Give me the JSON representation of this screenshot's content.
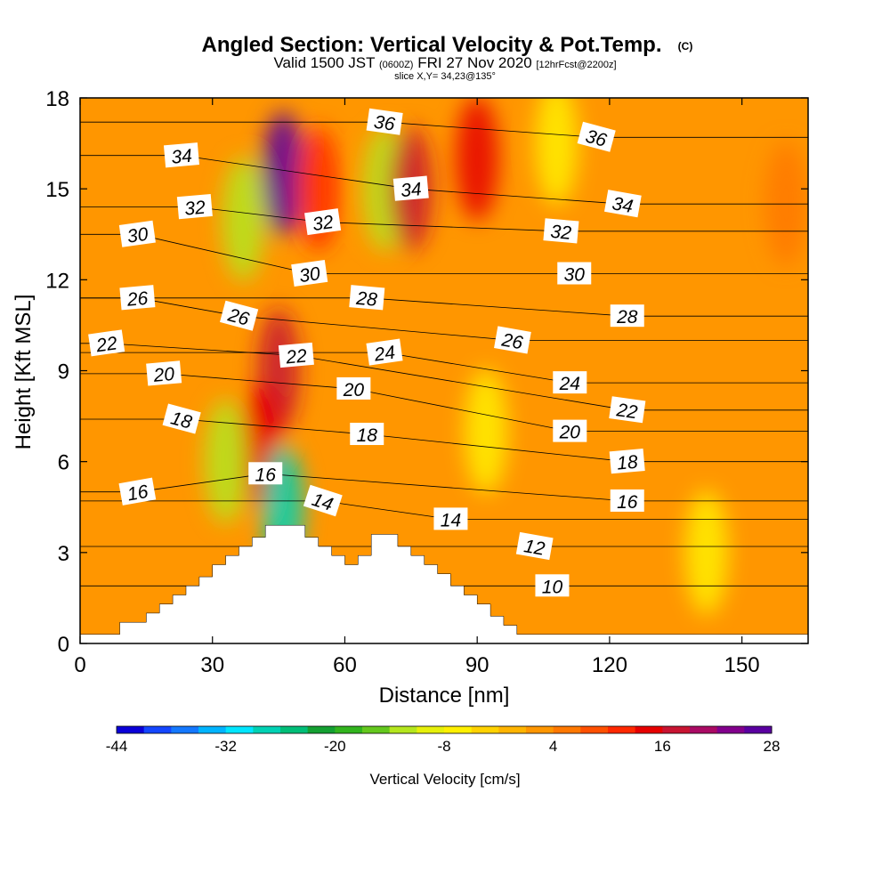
{
  "chart_data": {
    "type": "heatmap",
    "title": "Angled Section: Vertical Velocity & Pot.Temp.",
    "title_mark": "(C)",
    "subtitle_parts": [
      "Valid 1500 JST",
      "(0600Z)",
      "FRI 27 Nov 2020",
      "[12hrFcst@2200z]"
    ],
    "slice_text": "slice X,Y= 34,23@135°",
    "xlabel": "Distance [nm]",
    "ylabel": "Height [Kft MSL]",
    "xlim": [
      0,
      165
    ],
    "ylim": [
      0,
      18
    ],
    "xticks": [
      0,
      30,
      60,
      90,
      120,
      150
    ],
    "yticks": [
      0,
      3,
      6,
      9,
      12,
      15,
      18
    ],
    "colorbar": {
      "label": "Vertical Velocity [cm/s]",
      "tick_values": [
        -44,
        -32,
        -20,
        -8,
        4,
        16,
        28
      ],
      "min": -44,
      "step": 3,
      "colors": [
        "#0a00d8",
        "#1446ff",
        "#1478ff",
        "#00b4ff",
        "#00e6ff",
        "#00d2b4",
        "#00be78",
        "#14a032",
        "#32b41e",
        "#64c81e",
        "#b4e61e",
        "#e6f00a",
        "#fff000",
        "#ffd200",
        "#ffb400",
        "#ff9600",
        "#ff7800",
        "#ff5000",
        "#ff2800",
        "#e60000",
        "#c81432",
        "#aa0a64",
        "#82008c",
        "#5a00a0"
      ]
    },
    "vertical_velocity_features": [
      {
        "x": 46,
        "y": 15.5,
        "value": 30
      },
      {
        "x": 45,
        "y": 9,
        "value": 18
      },
      {
        "x": 41,
        "y": 6.5,
        "value": 14
      },
      {
        "x": 37,
        "y": 14,
        "value": -14
      },
      {
        "x": 33,
        "y": 6,
        "value": -12
      },
      {
        "x": 46,
        "y": 4.5,
        "value": -28
      },
      {
        "x": 54,
        "y": 15,
        "value": 12
      },
      {
        "x": 69,
        "y": 15,
        "value": -14
      },
      {
        "x": 75,
        "y": 15,
        "value": 16
      },
      {
        "x": 90,
        "y": 16,
        "value": 14
      },
      {
        "x": 92,
        "y": 7,
        "value": -8
      },
      {
        "x": 108,
        "y": 16.5,
        "value": -8
      },
      {
        "x": 142,
        "y": 3,
        "value": -6
      },
      {
        "x": 160,
        "y": 14.5,
        "value": 6
      }
    ],
    "theta_labels": [
      {
        "x": 23,
        "y": 16.1,
        "value": "34",
        "rot": -5
      },
      {
        "x": 26,
        "y": 14.4,
        "value": "32",
        "rot": -5
      },
      {
        "x": 13,
        "y": 13.5,
        "value": "30",
        "rot": -8
      },
      {
        "x": 13,
        "y": 11.4,
        "value": "26",
        "rot": -5
      },
      {
        "x": 6,
        "y": 9.9,
        "value": "22",
        "rot": -8
      },
      {
        "x": 19,
        "y": 8.9,
        "value": "20",
        "rot": -5
      },
      {
        "x": 23,
        "y": 7.4,
        "value": "18",
        "rot": 15
      },
      {
        "x": 13,
        "y": 5,
        "value": "16",
        "rot": -10
      },
      {
        "x": 36,
        "y": 10.8,
        "value": "26",
        "rot": 15
      },
      {
        "x": 49,
        "y": 9.5,
        "value": "22",
        "rot": -5
      },
      {
        "x": 52,
        "y": 12.2,
        "value": "30",
        "rot": -8
      },
      {
        "x": 55,
        "y": 13.9,
        "value": "32",
        "rot": -8
      },
      {
        "x": 42,
        "y": 5.6,
        "value": "16",
        "rot": 0
      },
      {
        "x": 55,
        "y": 4.7,
        "value": "14",
        "rot": 18
      },
      {
        "x": 69,
        "y": 17.2,
        "value": "36",
        "rot": 8
      },
      {
        "x": 75,
        "y": 15,
        "value": "34",
        "rot": -5
      },
      {
        "x": 65,
        "y": 11.4,
        "value": "28",
        "rot": 5
      },
      {
        "x": 69,
        "y": 9.6,
        "value": "24",
        "rot": -8
      },
      {
        "x": 62,
        "y": 8.4,
        "value": "20",
        "rot": 0
      },
      {
        "x": 65,
        "y": 6.9,
        "value": "18",
        "rot": 0
      },
      {
        "x": 84,
        "y": 4.1,
        "value": "14",
        "rot": 0
      },
      {
        "x": 98,
        "y": 10,
        "value": "26",
        "rot": 10
      },
      {
        "x": 109,
        "y": 13.6,
        "value": "32",
        "rot": 5
      },
      {
        "x": 112,
        "y": 12.2,
        "value": "30",
        "rot": 0
      },
      {
        "x": 111,
        "y": 8.6,
        "value": "24",
        "rot": 0
      },
      {
        "x": 111,
        "y": 7,
        "value": "20",
        "rot": 0
      },
      {
        "x": 103,
        "y": 3.2,
        "value": "12",
        "rot": 10
      },
      {
        "x": 107,
        "y": 1.9,
        "value": "10",
        "rot": 0
      },
      {
        "x": 117,
        "y": 16.7,
        "value": "36",
        "rot": 15
      },
      {
        "x": 123,
        "y": 14.5,
        "value": "34",
        "rot": 10
      },
      {
        "x": 124,
        "y": 10.8,
        "value": "28",
        "rot": 0
      },
      {
        "x": 124,
        "y": 7.7,
        "value": "22",
        "rot": 8
      },
      {
        "x": 124,
        "y": 6,
        "value": "18",
        "rot": -5
      },
      {
        "x": 124,
        "y": 4.7,
        "value": "16",
        "rot": 0
      }
    ],
    "terrain_steps": [
      [
        0,
        0.3
      ],
      [
        9,
        0.3
      ],
      [
        9,
        0.7
      ],
      [
        15,
        0.7
      ],
      [
        15,
        1
      ],
      [
        18,
        1
      ],
      [
        18,
        1.3
      ],
      [
        21,
        1.3
      ],
      [
        21,
        1.6
      ],
      [
        24,
        1.6
      ],
      [
        24,
        1.9
      ],
      [
        27,
        1.9
      ],
      [
        27,
        2.2
      ],
      [
        30,
        2.2
      ],
      [
        30,
        2.6
      ],
      [
        33,
        2.6
      ],
      [
        33,
        2.9
      ],
      [
        36,
        2.9
      ],
      [
        36,
        3.2
      ],
      [
        39,
        3.2
      ],
      [
        39,
        3.5
      ],
      [
        42,
        3.5
      ],
      [
        42,
        3.9
      ],
      [
        51,
        3.9
      ],
      [
        51,
        3.5
      ],
      [
        54,
        3.5
      ],
      [
        54,
        3.2
      ],
      [
        57,
        3.2
      ],
      [
        57,
        2.9
      ],
      [
        60,
        2.9
      ],
      [
        60,
        2.6
      ],
      [
        63,
        2.6
      ],
      [
        63,
        2.9
      ],
      [
        66,
        2.9
      ],
      [
        66,
        3.6
      ],
      [
        72,
        3.6
      ],
      [
        72,
        3.2
      ],
      [
        75,
        3.2
      ],
      [
        75,
        2.9
      ],
      [
        78,
        2.9
      ],
      [
        78,
        2.6
      ],
      [
        81,
        2.6
      ],
      [
        81,
        2.3
      ],
      [
        84,
        2.3
      ],
      [
        84,
        1.9
      ],
      [
        87,
        1.9
      ],
      [
        87,
        1.6
      ],
      [
        90,
        1.6
      ],
      [
        90,
        1.3
      ],
      [
        93,
        1.3
      ],
      [
        93,
        0.9
      ],
      [
        96,
        0.9
      ],
      [
        96,
        0.6
      ],
      [
        99,
        0.6
      ],
      [
        99,
        0.3
      ],
      [
        165,
        0.3
      ]
    ]
  }
}
